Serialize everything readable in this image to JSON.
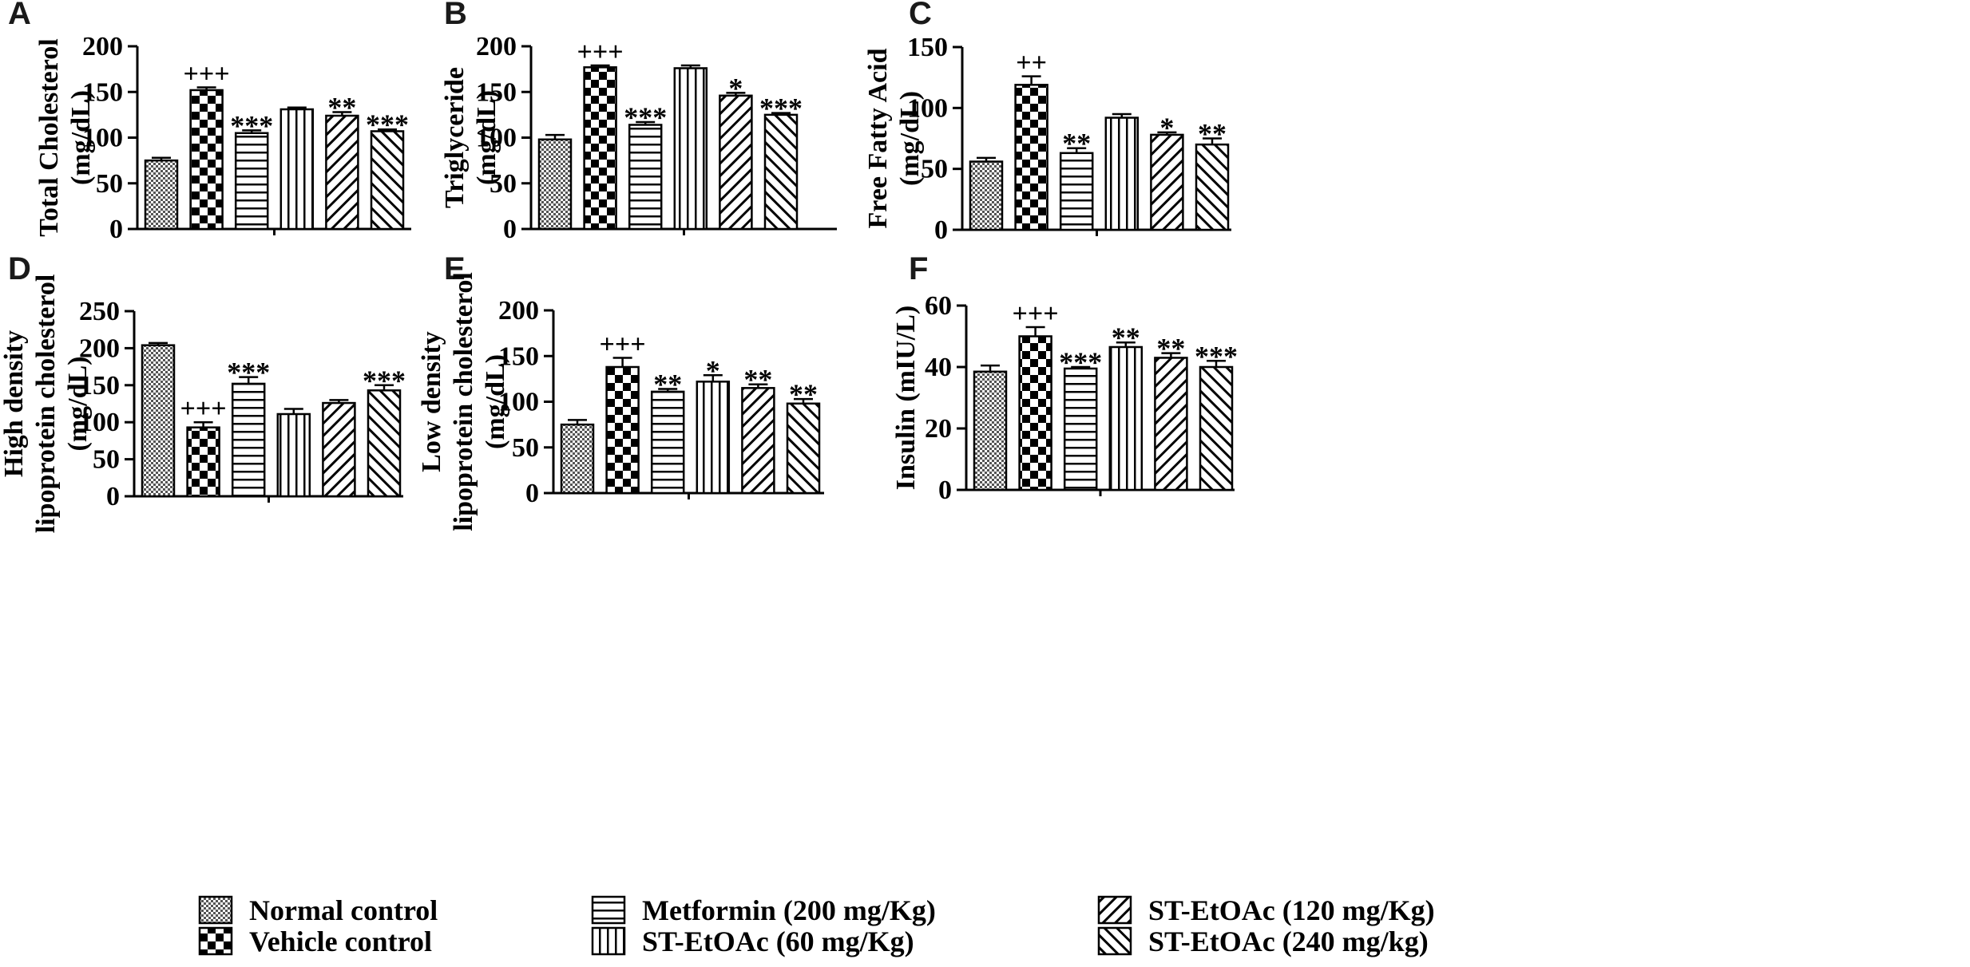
{
  "legend": [
    {
      "label": "Normal control",
      "pattern": "dots"
    },
    {
      "label": "Vehicle control",
      "pattern": "checker"
    },
    {
      "label": "Metformin (200 mg/Kg)",
      "pattern": "hlines"
    },
    {
      "label": "ST-EtOAc (60 mg/Kg)",
      "pattern": "vlines"
    },
    {
      "label": "ST-EtOAc (120 mg/Kg)",
      "pattern": "diag"
    },
    {
      "label": "ST-EtOAc (240 mg/kg)",
      "pattern": "back"
    }
  ],
  "chart_data": [
    {
      "panel": "A",
      "type": "bar",
      "ylabel": [
        "Total  Cholesterol",
        "(mg/dL)"
      ],
      "ylim": [
        0,
        200
      ],
      "ticks": [
        0,
        50,
        100,
        150,
        200
      ],
      "categories": [
        "Normal control",
        "Vehicle control",
        "Metformin (200 mg/Kg)",
        "ST-EtOAc (60 mg/Kg)",
        "ST-EtOAc (120 mg/Kg)",
        "ST-EtOAc (240 mg/kg)"
      ],
      "values": [
        75,
        152,
        105,
        131,
        124,
        107
      ],
      "errors": [
        3,
        3,
        3,
        2,
        4,
        2
      ],
      "significance": [
        "",
        "+++",
        "***",
        "",
        "**",
        "***"
      ]
    },
    {
      "panel": "B",
      "type": "bar",
      "ylabel": [
        "Triglyceride",
        "(mg/dL)"
      ],
      "ylim": [
        0,
        200
      ],
      "ticks": [
        0,
        50,
        100,
        150,
        200
      ],
      "categories": [
        "Normal control",
        "Vehicle control",
        "Metformin (200 mg/Kg)",
        "ST-EtOAc (60 mg/Kg)",
        "ST-EtOAc (120 mg/Kg)",
        "ST-EtOAc (240 mg/kg)"
      ],
      "values": [
        98,
        177,
        114,
        176,
        146,
        125
      ],
      "errors": [
        5,
        2,
        3,
        3,
        3,
        2
      ],
      "significance": [
        "",
        "+++",
        "***",
        "",
        "*",
        "***"
      ]
    },
    {
      "panel": "C",
      "type": "bar",
      "ylabel": [
        "Free Fatty Acid",
        "(mg/dL)"
      ],
      "ylim": [
        0,
        150
      ],
      "ticks": [
        0,
        50,
        100,
        150
      ],
      "categories": [
        "Normal control",
        "Vehicle control",
        "Metformin (200 mg/Kg)",
        "ST-EtOAc (60 mg/Kg)",
        "ST-EtOAc (120 mg/Kg)",
        "ST-EtOAc (240 mg/kg)"
      ],
      "values": [
        56,
        119,
        63,
        92,
        78,
        70
      ],
      "errors": [
        3,
        7,
        4,
        3,
        2,
        5
      ],
      "significance": [
        "",
        "++",
        "**",
        "",
        "*",
        "**"
      ]
    },
    {
      "panel": "D",
      "type": "bar",
      "ylabel": [
        "High density",
        "lipoprotein cholesterol",
        "(mg/dL)"
      ],
      "ylim": [
        0,
        250
      ],
      "ticks": [
        0,
        50,
        100,
        150,
        200,
        250
      ],
      "categories": [
        "Normal control",
        "Vehicle control",
        "Metformin (200 mg/Kg)",
        "ST-EtOAc (60 mg/Kg)",
        "ST-EtOAc (120 mg/Kg)",
        "ST-EtOAc (240 mg/kg)"
      ],
      "values": [
        204,
        93,
        152,
        111,
        126,
        143
      ],
      "errors": [
        3,
        7,
        9,
        7,
        4,
        7
      ],
      "significance": [
        "",
        "+++",
        "***",
        "",
        "",
        "***"
      ]
    },
    {
      "panel": "E",
      "type": "bar",
      "ylabel": [
        "Low density",
        "lipoprotein cholesterol",
        "(mg/dL)"
      ],
      "ylim": [
        0,
        200
      ],
      "ticks": [
        0,
        50,
        100,
        150,
        200
      ],
      "categories": [
        "Normal control",
        "Vehicle control",
        "Metformin (200 mg/Kg)",
        "ST-EtOAc (60 mg/Kg)",
        "ST-EtOAc (120 mg/Kg)",
        "ST-EtOAc (240 mg/kg)"
      ],
      "values": [
        75,
        138,
        111,
        122,
        115,
        98
      ],
      "errors": [
        5,
        10,
        3,
        7,
        4,
        5
      ],
      "significance": [
        "",
        "+++",
        "**",
        "*",
        "**",
        "**"
      ]
    },
    {
      "panel": "F",
      "type": "bar",
      "ylabel": [
        "Insulin (mIU/L)"
      ],
      "ylim": [
        0,
        60
      ],
      "ticks": [
        0,
        20,
        40,
        60
      ],
      "categories": [
        "Normal control",
        "Vehicle control",
        "Metformin (200 mg/Kg)",
        "ST-EtOAc (60 mg/Kg)",
        "ST-EtOAc (120 mg/Kg)",
        "ST-EtOAc (240 mg/kg)"
      ],
      "values": [
        38.5,
        50,
        39.5,
        46.5,
        43,
        40
      ],
      "errors": [
        2,
        3,
        0.5,
        1.5,
        1.5,
        2
      ],
      "significance": [
        "",
        "+++",
        "***",
        "**",
        "**",
        "***"
      ]
    }
  ]
}
